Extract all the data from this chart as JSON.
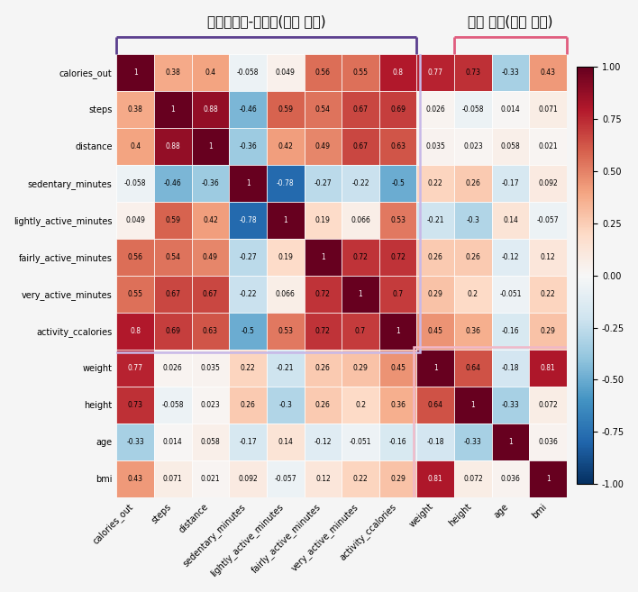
{
  "labels": [
    "calories_out",
    "steps",
    "distance",
    "sedentary_minutes",
    "lightly_active_minutes",
    "fairly_active_minutes",
    "very_active_minutes",
    "activity_ccalories",
    "weight",
    "height",
    "age",
    "bmi"
  ],
  "matrix": [
    [
      1,
      0.38,
      0.4,
      -0.058,
      0.049,
      0.56,
      0.55,
      0.8,
      0.77,
      0.73,
      -0.33,
      0.43
    ],
    [
      0.38,
      1,
      0.88,
      -0.46,
      0.59,
      0.54,
      0.67,
      0.69,
      0.026,
      -0.058,
      0.014,
      0.071
    ],
    [
      0.4,
      0.88,
      1,
      -0.36,
      0.42,
      0.49,
      0.67,
      0.63,
      0.035,
      0.023,
      0.058,
      0.021
    ],
    [
      -0.058,
      -0.46,
      -0.36,
      1,
      -0.78,
      -0.27,
      -0.22,
      -0.5,
      0.22,
      0.26,
      -0.17,
      0.092
    ],
    [
      0.049,
      0.59,
      0.42,
      -0.78,
      1,
      0.19,
      0.066,
      0.53,
      -0.21,
      -0.3,
      0.14,
      -0.057
    ],
    [
      0.56,
      0.54,
      0.49,
      -0.27,
      0.19,
      1,
      0.72,
      0.72,
      0.26,
      0.26,
      -0.12,
      0.12
    ],
    [
      0.55,
      0.67,
      0.67,
      -0.22,
      0.066,
      0.72,
      1,
      0.7,
      0.29,
      0.2,
      -0.051,
      0.22
    ],
    [
      0.8,
      0.69,
      0.63,
      -0.5,
      0.53,
      0.72,
      0.7,
      1,
      0.45,
      0.36,
      -0.16,
      0.29
    ],
    [
      0.77,
      0.026,
      0.035,
      0.22,
      -0.21,
      0.26,
      0.29,
      0.45,
      1,
      0.64,
      -0.18,
      0.81
    ],
    [
      0.73,
      -0.058,
      0.023,
      0.26,
      -0.3,
      0.26,
      0.2,
      0.36,
      0.64,
      1,
      -0.33,
      0.072
    ],
    [
      -0.33,
      0.014,
      0.058,
      -0.17,
      0.14,
      -0.12,
      -0.051,
      -0.16,
      -0.18,
      -0.33,
      1,
      0.036
    ],
    [
      0.43,
      0.071,
      0.021,
      0.092,
      -0.057,
      0.12,
      0.22,
      0.29,
      0.81,
      0.072,
      0.036,
      1
    ]
  ],
  "title_left": "라이프로그-활동량(입력 변수)",
  "title_right": "임상 정보(종속 변수)",
  "cmap": "RdBu_r",
  "vmin": -1,
  "vmax": 1,
  "bracket_color_left": "#5b3f8e",
  "bracket_color_right": "#e05c7e",
  "rect_color_left": "#c8b8e8",
  "rect_color_right": "#f0b8c8",
  "bg_color": "#f5f5f5"
}
